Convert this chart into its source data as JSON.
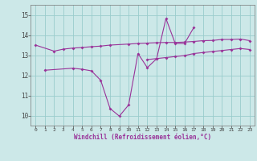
{
  "xlabel": "Windchill (Refroidissement éolien,°C)",
  "x": [
    0,
    1,
    2,
    3,
    4,
    5,
    6,
    7,
    8,
    9,
    10,
    11,
    12,
    13,
    14,
    15,
    16,
    17,
    18,
    19,
    20,
    21,
    22,
    23
  ],
  "line1_y": [
    13.5,
    null,
    13.2,
    13.3,
    13.35,
    13.38,
    13.42,
    13.45,
    13.5,
    null,
    13.55,
    13.58,
    13.6,
    13.62,
    13.63,
    13.63,
    13.65,
    13.68,
    13.72,
    13.73,
    13.78,
    13.78,
    13.8,
    13.72
  ],
  "line2_y": [
    null,
    12.25,
    null,
    null,
    12.35,
    12.3,
    12.22,
    11.75,
    10.35,
    9.97,
    10.53,
    13.08,
    12.38,
    12.82,
    14.82,
    13.58,
    13.58,
    14.38,
    null,
    null,
    null,
    null,
    null,
    null
  ],
  "line3_y": [
    null,
    null,
    null,
    null,
    null,
    null,
    null,
    null,
    null,
    null,
    null,
    null,
    12.78,
    12.83,
    12.88,
    12.93,
    12.98,
    13.08,
    13.13,
    13.18,
    13.23,
    13.28,
    13.33,
    13.28
  ],
  "line_color": "#993399",
  "bg_color": "#cce8e8",
  "grid_color": "#99cccc",
  "ylim": [
    9.5,
    15.5
  ],
  "yticks": [
    10,
    11,
    12,
    13,
    14,
    15
  ],
  "xlim": [
    -0.5,
    23.5
  ]
}
